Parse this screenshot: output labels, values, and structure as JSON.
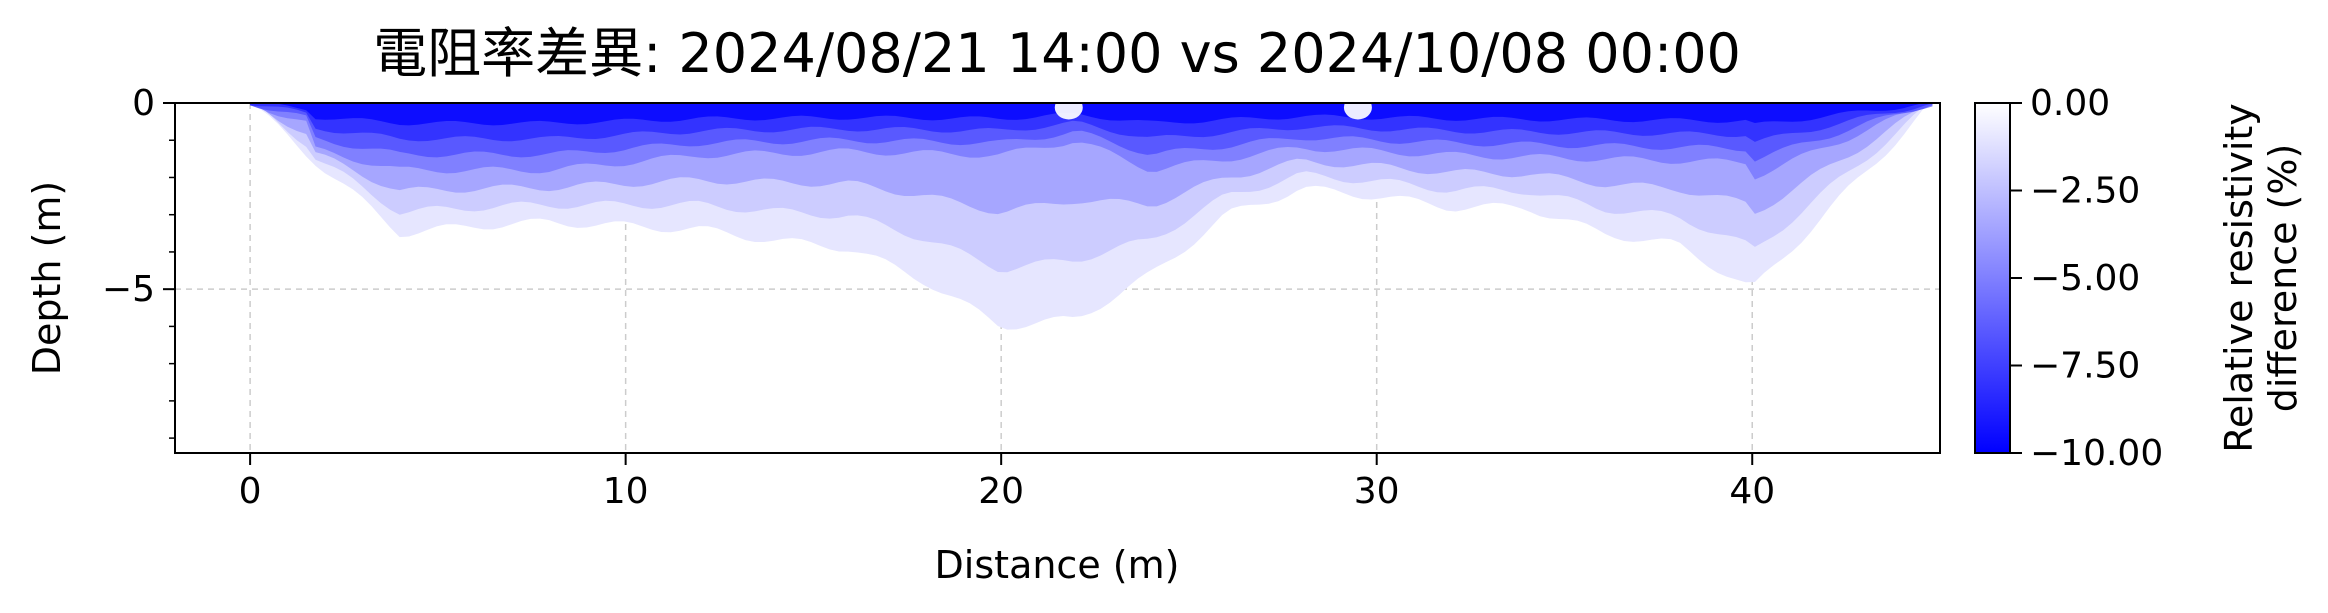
{
  "chart_data": {
    "type": "heatmap",
    "title": "電阻率差異: 2024/08/21 14:00 vs 2024/10/08 00:00",
    "xlabel": "Distance (m)",
    "ylabel": "Depth (m)",
    "xlim": [
      -2,
      45
    ],
    "ylim": [
      -9.4,
      0
    ],
    "xticks": [
      0,
      10,
      20,
      30,
      40
    ],
    "yticks": [
      0,
      -5
    ],
    "grid": true,
    "colorbar": {
      "label_lines": [
        "Relative resistivity",
        "difference (%)"
      ],
      "range": [
        -10.0,
        0.0
      ],
      "ticks": [
        "0.00",
        "-2.50",
        "-5.00",
        "-7.50",
        "-10.00"
      ],
      "tick_values": [
        0.0,
        -2.5,
        -5.0,
        -7.5,
        -10.0
      ],
      "color_low": "#0000ff",
      "color_high": "#ffffff"
    },
    "depth_of_lowest_contour_by_distance": {
      "x": [
        0,
        2,
        4,
        6,
        8,
        10,
        12,
        14,
        16,
        18,
        20,
        22,
        24,
        26,
        28,
        30,
        32,
        34,
        36,
        38,
        40,
        44.8
      ],
      "depth": [
        0,
        -1.8,
        -3.5,
        -3.3,
        -3.2,
        -3.3,
        -3.4,
        -3.7,
        -3.9,
        -4.8,
        -6.0,
        -5.8,
        -4.6,
        -3.0,
        -2.3,
        -2.5,
        -2.8,
        -2.8,
        -3.5,
        -3.8,
        -5.0,
        0
      ]
    },
    "depth_of_strong_anomaly_by_distance": {
      "x": [
        1.5,
        4,
        8,
        12,
        16,
        20,
        22,
        24,
        28,
        32,
        36,
        40
      ],
      "depth": [
        -1.2,
        -1.8,
        -1.8,
        -1.4,
        -1.3,
        -1.4,
        -1.0,
        -1.8,
        -1.2,
        -1.4,
        -1.5,
        -1.6
      ]
    },
    "near_zero_spots_at_surface_x": [
      21.8,
      29.5
    ]
  }
}
